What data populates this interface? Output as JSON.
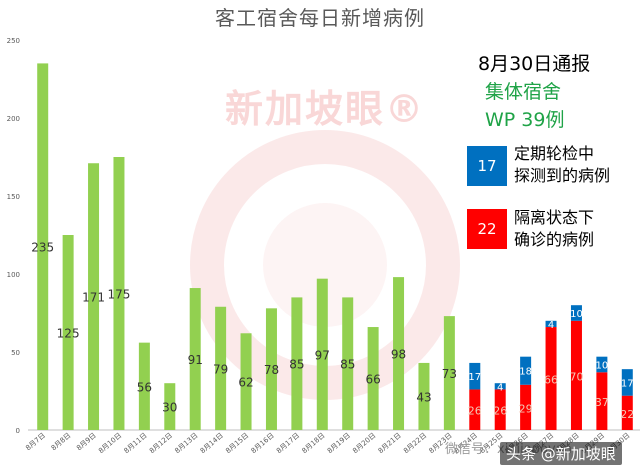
{
  "chart_data": {
    "type": "bar",
    "title": "客工宿舍每日新增病例",
    "ylim": [
      0,
      250
    ],
    "yticks": [
      0,
      50,
      100,
      150,
      200,
      250
    ],
    "grid": false,
    "legend_position": "right",
    "categories": [
      "8月7日",
      "8月8日",
      "8月9日",
      "8月10日",
      "8月11日",
      "8月12日",
      "8月13日",
      "8月14日",
      "8月15日",
      "8月16日",
      "8月17日",
      "8月18日",
      "8月19日",
      "8月20日",
      "8月21日",
      "8月22日",
      "8月23日",
      "8月24日",
      "8月25日",
      "8月26日",
      "8月27日",
      "8月28日",
      "8月29日",
      "8月30日"
    ],
    "series": [
      {
        "key": "total",
        "color": "#92d050",
        "values": [
          235,
          125,
          171,
          175,
          56,
          30,
          91,
          79,
          62,
          78,
          85,
          97,
          85,
          66,
          98,
          43,
          73,
          null,
          null,
          null,
          null,
          null,
          null,
          null
        ]
      },
      {
        "key": "quarantine",
        "name": "隔离状态下确诊的病例",
        "color": "#ff0000",
        "values": [
          null,
          null,
          null,
          null,
          null,
          null,
          null,
          null,
          null,
          null,
          null,
          null,
          null,
          null,
          null,
          null,
          null,
          26,
          26,
          29,
          66,
          70,
          37,
          22
        ]
      },
      {
        "key": "screening",
        "name": "定期轮检中探测到的病例",
        "color": "#0070c0",
        "values": [
          null,
          null,
          null,
          null,
          null,
          null,
          null,
          null,
          null,
          null,
          null,
          null,
          null,
          null,
          null,
          null,
          null,
          17,
          4,
          18,
          4,
          10,
          10,
          17
        ]
      }
    ]
  },
  "annotation": {
    "report_date": "8月30日通报",
    "group": "集体宿舍",
    "wp": "WP 39例"
  },
  "legend": [
    {
      "value": "17",
      "text_line1": "定期轮检中",
      "text_line2": "探测到的病例",
      "color": "#0070c0"
    },
    {
      "value": "22",
      "text_line1": "隔离状态下",
      "text_line2": "确诊的病例",
      "color": "#ff0000"
    }
  ],
  "watermark": "新加坡眼®",
  "footer": {
    "faint": "微信号：xinjiapoyan",
    "credit": "头条 @新加坡眼"
  }
}
